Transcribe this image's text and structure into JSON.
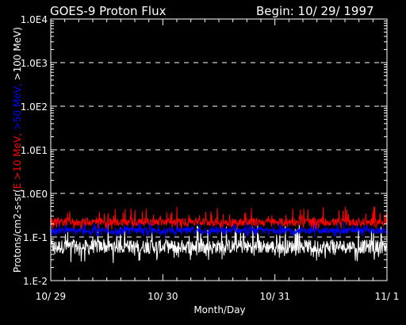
{
  "chart_data": {
    "type": "line",
    "title": "GOES-9 Proton Flux",
    "begin_label": "Begin: 10/ 29/ 1997",
    "xlabel": "Month/Day",
    "ylabel_parts": [
      {
        "text": "Protons/cm2-s-sr(",
        "color": "#ffffff"
      },
      {
        "text": "E >10 MeV,",
        "color": "#ff0000"
      },
      {
        "text": " >50 MeV,",
        "color": "#0000ff"
      },
      {
        "text": " >100 MeV)",
        "color": "#ffffff"
      }
    ],
    "y_scale": "log",
    "ylim": [
      0.01,
      10000
    ],
    "y_ticks": [
      {
        "value": 10000,
        "label": "1.0E4"
      },
      {
        "value": 1000,
        "label": "1.0E3"
      },
      {
        "value": 100,
        "label": "1.0E2"
      },
      {
        "value": 10,
        "label": "1.0E1"
      },
      {
        "value": 1,
        "label": "1.0E0"
      },
      {
        "value": 0.1,
        "label": "1.E-1"
      },
      {
        "value": 0.01,
        "label": "1.E-2"
      }
    ],
    "x_ticks": [
      "10/ 29",
      "10/ 30",
      "10/ 31",
      "11/ 1"
    ],
    "xlim_days": [
      0,
      3
    ],
    "grid": "dashed horizontal",
    "series": [
      {
        "name": "E >10 MeV",
        "color": "#ff0000",
        "typical": 0.22,
        "min": 0.15,
        "max": 0.5
      },
      {
        "name": ">50 MeV",
        "color": "#0000ff",
        "typical": 0.14,
        "min": 0.1,
        "max": 0.25
      },
      {
        "name": ">100 MeV",
        "color": "#ffffff",
        "typical": 0.06,
        "min": 0.025,
        "max": 0.2
      }
    ]
  }
}
